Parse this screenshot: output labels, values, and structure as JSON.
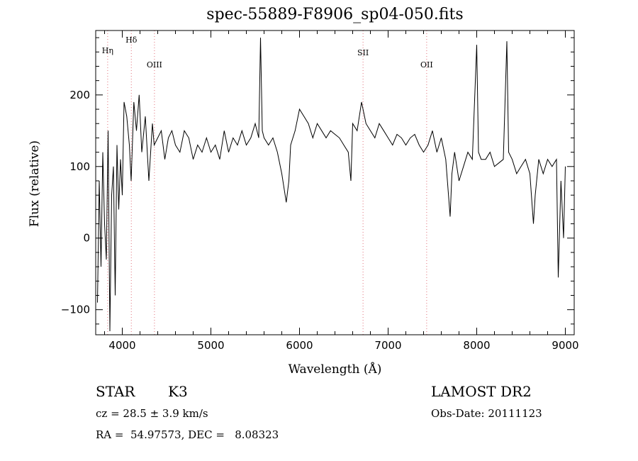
{
  "chart_data": {
    "type": "line",
    "title": "spec-55889-F8906_sp04-050.fits",
    "xlabel": "Wavelength (Å)",
    "ylabel": "Flux (relative)",
    "xlim": [
      3700,
      9100
    ],
    "ylim": [
      -135,
      290
    ],
    "xticks": [
      4000,
      5000,
      6000,
      7000,
      8000,
      9000
    ],
    "yticks": [
      -100,
      0,
      100,
      200
    ],
    "grid": false,
    "line_color": "#000000",
    "marker_color": "#e0707a",
    "lines": [
      {
        "name": "Hη",
        "wavelength": 3835
      },
      {
        "name": "Hδ",
        "wavelength": 4102
      },
      {
        "name": "OIII",
        "wavelength": 4363
      },
      {
        "name": "SII",
        "wavelength": 6717
      },
      {
        "name": "OII",
        "wavelength": 7435
      }
    ],
    "series": [
      {
        "x": [
          3720,
          3740,
          3760,
          3780,
          3800,
          3820,
          3840,
          3860,
          3880,
          3900,
          3920,
          3940,
          3960,
          3980,
          4000,
          4020,
          4050,
          4080,
          4100,
          4130,
          4160,
          4190,
          4220,
          4260,
          4300,
          4340,
          4360,
          4400,
          4440,
          4480,
          4520,
          4560,
          4600,
          4650,
          4700,
          4750,
          4800,
          4850,
          4900,
          4950,
          5000,
          5050,
          5100,
          5150,
          5200,
          5250,
          5300,
          5350,
          5400,
          5450,
          5500,
          5540,
          5560,
          5580,
          5600,
          5650,
          5700,
          5750,
          5800,
          5850,
          5880,
          5900,
          5950,
          6000,
          6050,
          6100,
          6150,
          6200,
          6250,
          6300,
          6350,
          6400,
          6450,
          6500,
          6550,
          6580,
          6600,
          6650,
          6700,
          6750,
          6800,
          6850,
          6900,
          6950,
          7000,
          7050,
          7100,
          7150,
          7200,
          7250,
          7300,
          7350,
          7400,
          7450,
          7500,
          7550,
          7600,
          7650,
          7700,
          7720,
          7750,
          7800,
          7850,
          7900,
          7950,
          8000,
          8020,
          8050,
          8100,
          8150,
          8200,
          8250,
          8300,
          8340,
          8360,
          8400,
          8450,
          8500,
          8550,
          8600,
          8640,
          8660,
          8700,
          8750,
          8800,
          8850,
          8900,
          8920,
          8950,
          8980,
          9000
        ],
        "y": [
          -90,
          80,
          -40,
          120,
          20,
          -30,
          150,
          -130,
          60,
          100,
          -80,
          130,
          40,
          110,
          60,
          190,
          170,
          130,
          80,
          190,
          150,
          200,
          120,
          170,
          80,
          160,
          130,
          140,
          150,
          110,
          140,
          150,
          130,
          120,
          150,
          140,
          110,
          130,
          120,
          140,
          120,
          130,
          110,
          150,
          120,
          140,
          130,
          150,
          130,
          140,
          160,
          140,
          280,
          150,
          140,
          130,
          140,
          120,
          90,
          50,
          80,
          130,
          150,
          180,
          170,
          160,
          140,
          160,
          150,
          140,
          150,
          145,
          140,
          130,
          120,
          80,
          160,
          150,
          190,
          160,
          150,
          140,
          160,
          150,
          140,
          130,
          145,
          140,
          130,
          140,
          145,
          130,
          120,
          130,
          150,
          120,
          140,
          110,
          30,
          90,
          120,
          80,
          100,
          120,
          110,
          270,
          120,
          110,
          110,
          120,
          100,
          105,
          110,
          275,
          120,
          110,
          90,
          100,
          110,
          90,
          20,
          60,
          110,
          90,
          110,
          100,
          110,
          -55,
          80,
          0,
          100
        ]
      }
    ],
    "annotations": {
      "object": "STAR",
      "subclass": "K3",
      "survey": "LAMOST DR2",
      "cz": "cz = 28.5 ± 3.9 km/s",
      "obs_date": "Obs-Date: 20111123",
      "coords": "RA =  54.97573, DEC =   8.08323"
    }
  }
}
